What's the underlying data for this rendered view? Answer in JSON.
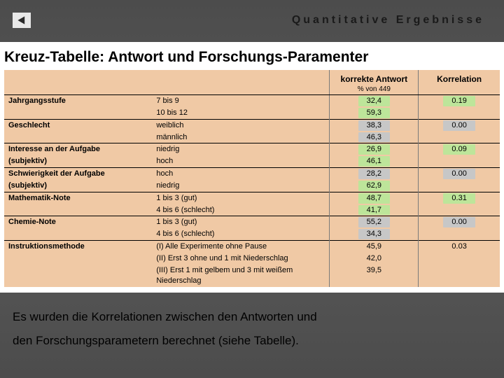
{
  "header": {
    "title": "Quantitative Ergebnisse"
  },
  "section": {
    "title": "Kreuz-Tabelle:  Antwort und Forschungs-Paramenter"
  },
  "table": {
    "head": {
      "answer": "korrekte Antwort",
      "korr": "Korrelation",
      "sub": "% von 449"
    },
    "bg": "#f0c9a5",
    "highlight_green": "#bde59a",
    "highlight_grey": "#c7c7c7",
    "groups": [
      {
        "label": "Jahrgangsstufe",
        "rows": [
          {
            "desc": "7 bis 9",
            "ans": "32,4",
            "hl": "green",
            "korr": "0.19"
          },
          {
            "desc": "10 bis 12",
            "ans": "59,3",
            "hl": "green"
          }
        ]
      },
      {
        "label": "Geschlecht",
        "rows": [
          {
            "desc": "weiblich",
            "ans": "38,3",
            "hl": "grey",
            "korr": "0.00"
          },
          {
            "desc": "männlich",
            "ans": "46,3",
            "hl": "grey"
          }
        ]
      },
      {
        "label": "Interesse an der Aufgabe",
        "label2": "(subjektiv)",
        "rows": [
          {
            "desc": "niedrig",
            "ans": "26,9",
            "hl": "green",
            "korr": "0.09"
          },
          {
            "desc": "hoch",
            "ans": "46,1",
            "hl": "green"
          }
        ]
      },
      {
        "label": "Schwierigkeit der Aufgabe",
        "label2": "(subjektiv)",
        "rows": [
          {
            "desc": "hoch",
            "ans": "28,2",
            "hl": "grey",
            "korr": "0.00"
          },
          {
            "desc": "niedrig",
            "ans": "62,9",
            "hl": "green"
          }
        ]
      },
      {
        "label": "Mathematik-Note",
        "rows": [
          {
            "desc": "1 bis 3 (gut)",
            "ans": "48,7",
            "hl": "green",
            "korr": "0.31"
          },
          {
            "desc": "4 bis 6 (schlecht)",
            "ans": "41,7",
            "hl": "green"
          }
        ]
      },
      {
        "label": "Chemie-Note",
        "rows": [
          {
            "desc": "1 bis 3 (gut)",
            "ans": "55,2",
            "hl": "grey",
            "korr": "0.00"
          },
          {
            "desc": "4 bis 6 (schlecht)",
            "ans": "34,3",
            "hl": "grey"
          }
        ]
      },
      {
        "label": "Instruktionsmethode",
        "rows": [
          {
            "desc": "(I) Alle Experimente ohne Pause",
            "ans": "45,9",
            "korr": "0.03"
          },
          {
            "desc": "(II) Erst 3 ohne und 1 mit Niederschlag",
            "ans": "42,0"
          },
          {
            "desc": "(III) Erst 1 mit gelbem und 3 mit weißem Niederschlag",
            "ans": "39,5"
          }
        ]
      }
    ]
  },
  "footer": {
    "line1": "Es wurden die Korrelationen  zwischen den Antworten und",
    "line2": "den Forschungsparametern berechnet (siehe Tabelle)."
  }
}
